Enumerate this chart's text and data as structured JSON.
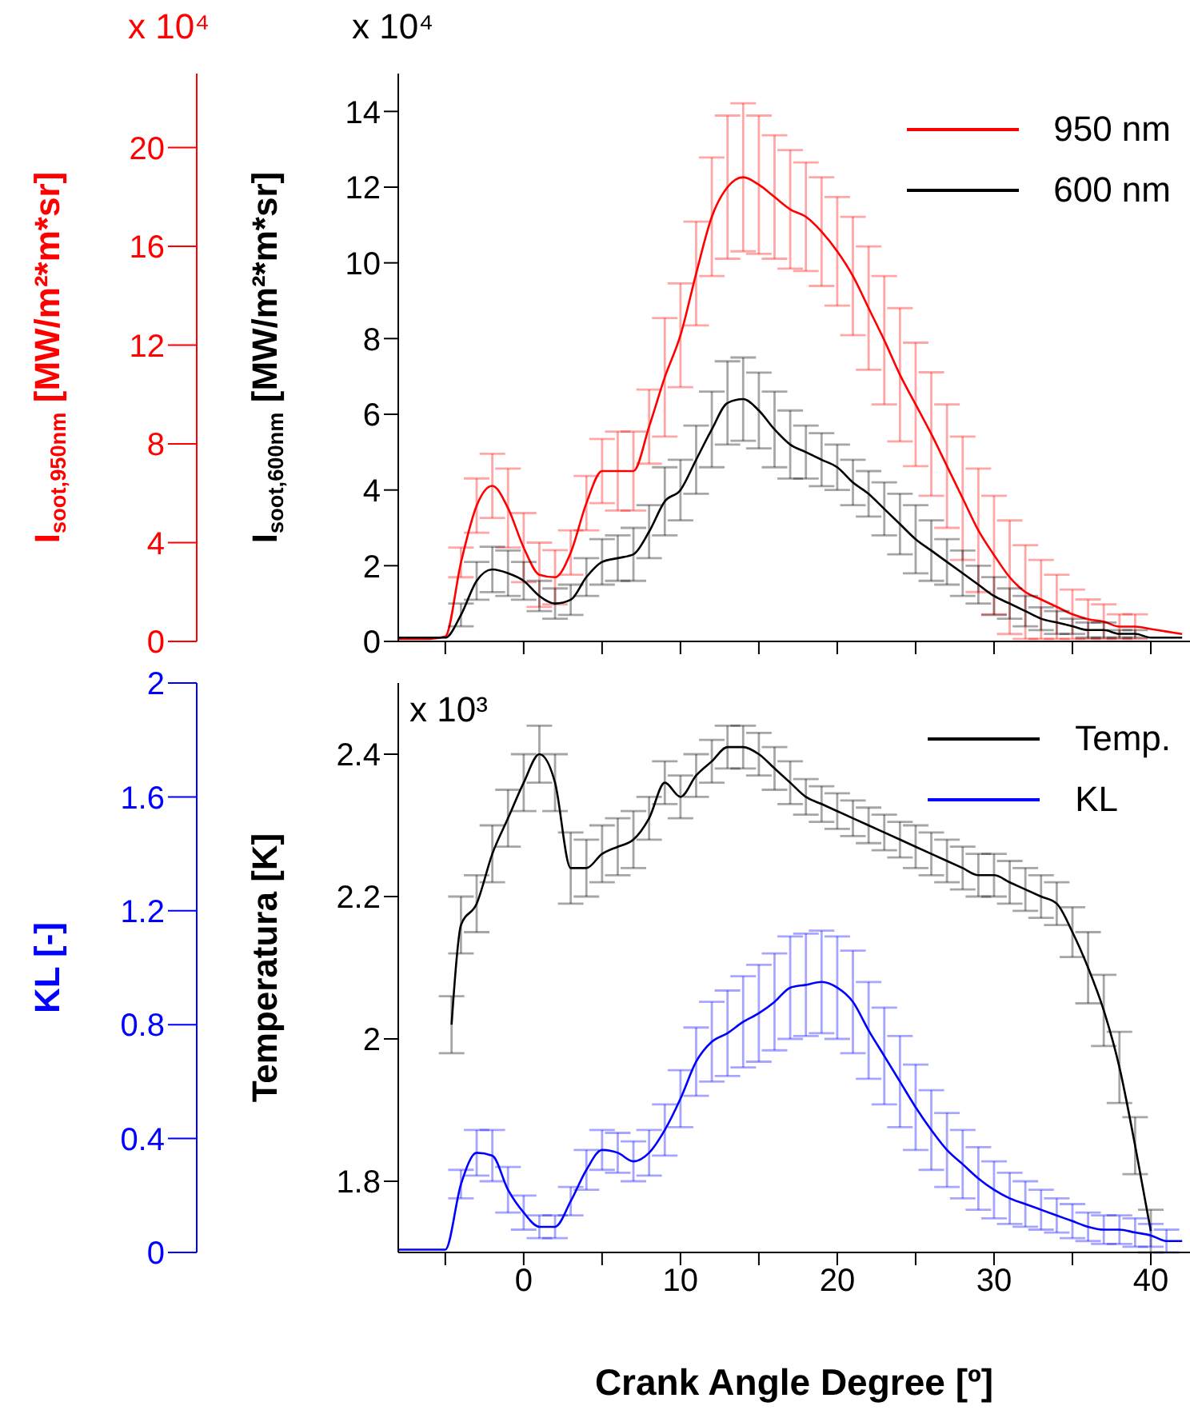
{
  "chart_data": [
    {
      "type": "line",
      "ylabel": "I$_{soot,600nm}$ [MW/m²*m*sr]",
      "y2label": "I$_{soot,950nm}$ [MW/m²*m*sr]",
      "annotations": [
        "x 10⁴",
        "x 10⁴"
      ],
      "x": [
        -8,
        -7,
        -6,
        -5,
        -4,
        -3,
        -2,
        -1,
        0,
        1,
        2,
        3,
        4,
        5,
        6,
        7,
        8,
        9,
        10,
        11,
        12,
        13,
        14,
        15,
        16,
        17,
        18,
        19,
        20,
        21,
        22,
        23,
        24,
        25,
        26,
        27,
        28,
        29,
        30,
        31,
        32,
        33,
        34,
        35,
        36,
        37,
        38,
        39,
        40,
        41,
        42
      ],
      "xlim": [
        -8,
        42.5
      ],
      "xticks": [
        {
          "value": -5,
          "label": null
        },
        0,
        {
          "value": 5,
          "label": null
        },
        10,
        {
          "value": 15,
          "label": null
        },
        20,
        {
          "value": 25,
          "label": null
        },
        30,
        {
          "value": 35,
          "label": null
        },
        40
      ],
      "ylim": [
        0,
        15
      ],
      "yticks": [
        0,
        2,
        4,
        6,
        8,
        10,
        12,
        14
      ],
      "y2lim": [
        0,
        23
      ],
      "y2ticks": [
        0,
        4,
        8,
        12,
        16,
        20
      ],
      "tick_labels": "y",
      "legend": "top right",
      "series": [
        {
          "name": "950 nm",
          "color": "#ff0000",
          "axis": "y2",
          "values": [
            0.1,
            0.1,
            0.1,
            0.2,
            3.2,
            5.5,
            6.3,
            5.4,
            3.8,
            2.7,
            2.6,
            3.6,
            5.6,
            6.9,
            6.9,
            6.9,
            8.7,
            10.7,
            12.4,
            14.9,
            17.2,
            18.4,
            18.8,
            18.5,
            18.0,
            17.5,
            17.2,
            16.6,
            15.8,
            14.8,
            13.5,
            12.2,
            10.8,
            9.6,
            8.4,
            7.1,
            5.8,
            4.5,
            3.5,
            2.6,
            2.0,
            1.7,
            1.4,
            1.1,
            0.9,
            0.8,
            0.6,
            0.6,
            0.5,
            0.4,
            0.3
          ],
          "errors": [
            null,
            null,
            null,
            null,
            0.6,
            1.1,
            1.3,
            1.6,
            1.4,
            1.3,
            1.1,
            0.9,
            1.1,
            1.3,
            1.6,
            1.6,
            1.5,
            2.4,
            2.1,
            2.1,
            2.4,
            2.9,
            3.0,
            2.8,
            2.5,
            2.4,
            2.2,
            2.2,
            2.2,
            2.4,
            2.5,
            2.6,
            2.7,
            2.5,
            2.5,
            2.5,
            2.5,
            2.5,
            2.4,
            2.3,
            1.9,
            1.6,
            1.3,
            1.0,
            0.8,
            0.7,
            0.5,
            0.5,
            null,
            null,
            null
          ]
        },
        {
          "name": "600 nm",
          "color": "#000000",
          "values": [
            0.1,
            0.1,
            0.1,
            0.1,
            0.7,
            1.6,
            1.9,
            1.8,
            1.6,
            1.2,
            1.0,
            1.1,
            1.7,
            2.1,
            2.2,
            2.3,
            2.9,
            3.7,
            4.0,
            4.8,
            5.6,
            6.3,
            6.4,
            6.1,
            5.6,
            5.2,
            5.0,
            4.8,
            4.6,
            4.2,
            3.9,
            3.5,
            3.1,
            2.7,
            2.4,
            2.1,
            1.8,
            1.5,
            1.2,
            1.0,
            0.8,
            0.6,
            0.5,
            0.4,
            0.3,
            0.3,
            0.2,
            0.2,
            0.1,
            0.1,
            0.1
          ],
          "errors": [
            null,
            null,
            null,
            null,
            0.3,
            0.5,
            0.6,
            0.6,
            0.5,
            0.4,
            0.4,
            0.4,
            0.5,
            0.6,
            0.6,
            0.7,
            0.7,
            0.9,
            0.8,
            0.9,
            1.0,
            1.1,
            1.1,
            1.0,
            1.0,
            0.9,
            0.7,
            0.7,
            0.6,
            0.6,
            0.6,
            0.7,
            0.8,
            0.9,
            0.8,
            0.6,
            0.6,
            0.5,
            0.5,
            0.4,
            0.4,
            0.3,
            0.3,
            0.2,
            0.2,
            0.2,
            0.1,
            0.1,
            null,
            null,
            null
          ]
        }
      ]
    },
    {
      "type": "line",
      "xlabel": "Crank Angle Degree [º]",
      "ylabel": "Temperatura [K]",
      "y2label": "KL [-]",
      "annotations": [
        "x 10³"
      ],
      "x": [
        -8,
        -7,
        -6,
        -5,
        -4,
        -3,
        -2,
        -1,
        0,
        1,
        2,
        3,
        4,
        5,
        6,
        7,
        8,
        9,
        10,
        11,
        12,
        13,
        14,
        15,
        16,
        17,
        18,
        19,
        20,
        21,
        22,
        23,
        24,
        25,
        26,
        27,
        28,
        29,
        30,
        31,
        32,
        33,
        34,
        35,
        36,
        37,
        38,
        39,
        40,
        41,
        42
      ],
      "xlim": [
        -8,
        42.5
      ],
      "xticks": [
        {
          "value": -5,
          "label": null
        },
        0,
        {
          "value": 5,
          "label": null
        },
        10,
        {
          "value": 15,
          "label": null
        },
        20,
        {
          "value": 25,
          "label": null
        },
        30,
        {
          "value": 35,
          "label": null
        },
        40
      ],
      "ylim": [
        1.7,
        2.5
      ],
      "yticks": [
        1.8,
        2,
        2.2,
        2.4
      ],
      "y2lim": [
        0,
        2
      ],
      "y2ticks": [
        0,
        0.4,
        0.8,
        1.2,
        1.6,
        2
      ],
      "legend": "top right",
      "series": [
        {
          "name": "Temp.",
          "color": "#000000",
          "x": [
            -4.6,
            -4,
            -3,
            -2,
            -1,
            0,
            1,
            2,
            3,
            4,
            5,
            6,
            7,
            8,
            9,
            10,
            11,
            12,
            13,
            14,
            15,
            16,
            17,
            18,
            19,
            20,
            21,
            22,
            23,
            24,
            25,
            26,
            27,
            28,
            29,
            30,
            31,
            32,
            33,
            34,
            35,
            36,
            37,
            38,
            39,
            40
          ],
          "values": [
            2.02,
            2.16,
            2.19,
            2.26,
            2.31,
            2.36,
            2.4,
            2.36,
            2.24,
            2.24,
            2.26,
            2.27,
            2.28,
            2.31,
            2.36,
            2.34,
            2.37,
            2.39,
            2.41,
            2.41,
            2.4,
            2.38,
            2.36,
            2.34,
            2.33,
            2.32,
            2.31,
            2.3,
            2.29,
            2.28,
            2.27,
            2.26,
            2.25,
            2.24,
            2.23,
            2.23,
            2.22,
            2.21,
            2.2,
            2.19,
            2.15,
            2.1,
            2.04,
            1.96,
            1.85,
            1.73
          ],
          "errors": [
            0.04,
            0.04,
            0.04,
            0.04,
            0.04,
            0.04,
            0.04,
            0.04,
            0.05,
            0.04,
            0.04,
            0.04,
            0.04,
            0.03,
            0.03,
            0.03,
            0.03,
            0.03,
            0.03,
            0.03,
            0.03,
            0.03,
            0.03,
            0.025,
            0.025,
            0.025,
            0.025,
            0.025,
            0.025,
            0.025,
            0.03,
            0.03,
            0.03,
            0.03,
            0.03,
            0.03,
            0.03,
            0.03,
            0.03,
            0.03,
            0.035,
            0.05,
            0.05,
            0.05,
            0.04,
            0.03
          ]
        },
        {
          "name": "KL",
          "color": "#0000ff",
          "axis": "y2",
          "values": [
            0.01,
            0.01,
            0.01,
            0.01,
            0.24,
            0.35,
            0.34,
            0.22,
            0.14,
            0.09,
            0.09,
            0.18,
            0.29,
            0.36,
            0.35,
            0.32,
            0.35,
            0.43,
            0.54,
            0.67,
            0.74,
            0.77,
            0.81,
            0.84,
            0.88,
            0.93,
            0.94,
            0.95,
            0.93,
            0.88,
            0.78,
            0.69,
            0.6,
            0.51,
            0.43,
            0.36,
            0.31,
            0.26,
            0.22,
            0.19,
            0.17,
            0.15,
            0.13,
            0.11,
            0.09,
            0.08,
            0.08,
            0.07,
            0.06,
            0.04,
            0.04
          ],
          "errors": [
            null,
            null,
            null,
            null,
            0.05,
            0.08,
            0.09,
            0.08,
            0.06,
            0.04,
            0.04,
            0.05,
            0.07,
            0.07,
            0.07,
            0.07,
            0.08,
            0.09,
            0.1,
            0.12,
            0.14,
            0.15,
            0.16,
            0.17,
            0.17,
            0.18,
            0.18,
            0.18,
            0.18,
            0.18,
            0.17,
            0.17,
            0.16,
            0.15,
            0.14,
            0.13,
            0.12,
            0.11,
            0.1,
            0.09,
            0.08,
            0.07,
            0.06,
            0.06,
            0.05,
            0.05,
            0.05,
            0.05,
            0.04,
            0.04,
            null
          ]
        }
      ]
    }
  ]
}
